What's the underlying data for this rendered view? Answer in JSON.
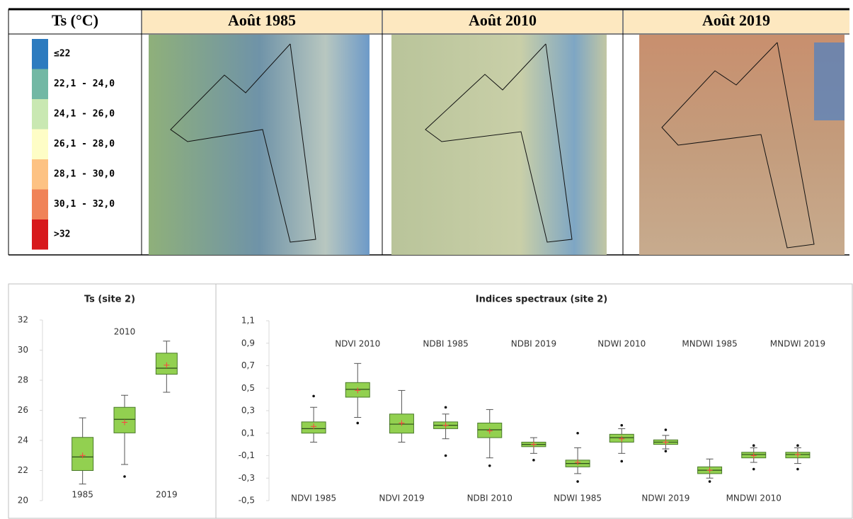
{
  "table": {
    "header": [
      "Ts (°C)",
      "Août 1985",
      "Août 2010",
      "Août 2019"
    ],
    "legend": [
      {
        "label": "≤22",
        "color": "#2c7bbf"
      },
      {
        "label": "22,1 - 24,0",
        "color": "#72b8a4"
      },
      {
        "label": "24,1 - 26,0",
        "color": "#c9e8b2"
      },
      {
        "label": "26,1 - 28,0",
        "color": "#fefdc6"
      },
      {
        "label": "28,1 - 30,0",
        "color": "#fdc283"
      },
      {
        "label": "30,1 - 32,0",
        "color": "#f08358"
      },
      {
        "label": ">32",
        "color": "#d7191c"
      }
    ]
  },
  "chart_data": [
    {
      "type": "box",
      "title": "Ts (site 2)",
      "box_color": "#92d050",
      "mean_color": "#ff4040",
      "categories": [
        "1985",
        "2010",
        "2019"
      ],
      "low": [
        21.1,
        22.4,
        27.2
      ],
      "q1": [
        22.0,
        24.5,
        28.4
      ],
      "median": [
        22.9,
        25.4,
        28.8
      ],
      "q3": [
        24.2,
        26.2,
        29.8
      ],
      "high": [
        25.5,
        27.0,
        30.6
      ],
      "mean": [
        23.0,
        25.2,
        29.0
      ],
      "outliers": [
        [],
        [
          21.6
        ],
        []
      ],
      "ylim": [
        20,
        32
      ],
      "yticks": [
        20,
        22,
        24,
        26,
        28,
        30,
        32
      ]
    },
    {
      "type": "box",
      "title": "Indices spectraux (site 2)",
      "box_color": "#92d050",
      "mean_color": "#ff4040",
      "categories": [
        "NDVI 1985",
        "NDVI 2010",
        "NDVI 2019",
        "NDBI 1985",
        "NDBI 2010",
        "NDBI 2019",
        "NDWI 1985",
        "NDWI 2010",
        "NDWI 2019",
        "MNDWI  1985",
        "MNDWI 2010",
        "MNDWI 2019"
      ],
      "low": [
        0.02,
        0.24,
        0.02,
        0.05,
        -0.12,
        -0.08,
        -0.26,
        -0.08,
        -0.04,
        -0.3,
        -0.16,
        -0.17
      ],
      "q1": [
        0.1,
        0.42,
        0.1,
        0.14,
        0.06,
        -0.02,
        -0.2,
        0.02,
        0.0,
        -0.26,
        -0.12,
        -0.12
      ],
      "median": [
        0.14,
        0.49,
        0.18,
        0.17,
        0.13,
        0.0,
        -0.17,
        0.06,
        0.02,
        -0.23,
        -0.09,
        -0.09
      ],
      "q3": [
        0.2,
        0.55,
        0.27,
        0.2,
        0.19,
        0.02,
        -0.14,
        0.09,
        0.04,
        -0.2,
        -0.07,
        -0.07
      ],
      "high": [
        0.33,
        0.72,
        0.48,
        0.27,
        0.31,
        0.06,
        -0.03,
        0.14,
        0.08,
        -0.13,
        -0.03,
        -0.03
      ],
      "mean": [
        0.16,
        0.48,
        0.19,
        0.17,
        0.12,
        0.0,
        -0.16,
        0.05,
        0.02,
        -0.23,
        -0.1,
        -0.09
      ],
      "outliers": [
        [
          0.43
        ],
        [
          0.19
        ],
        [],
        [
          0.33,
          -0.1
        ],
        [
          -0.19
        ],
        [
          -0.14
        ],
        [
          0.1,
          -0.33
        ],
        [
          0.17,
          -0.15
        ],
        [
          0.13,
          -0.06
        ],
        [
          -0.33
        ],
        [
          -0.01,
          -0.22
        ],
        [
          -0.01,
          -0.22
        ]
      ],
      "ylim": [
        -0.5,
        1.1
      ],
      "yticks": [
        {
          "value": -0.5,
          "label": "-0,5"
        },
        {
          "value": -0.3,
          "label": "-0,3"
        },
        {
          "value": -0.1,
          "label": "-0,1"
        },
        {
          "value": 0.1,
          "label": "0,1"
        },
        {
          "value": 0.3,
          "label": "0,3"
        },
        {
          "value": 0.5,
          "label": "0,5"
        },
        {
          "value": 0.7,
          "label": "0,7"
        },
        {
          "value": 0.9,
          "label": "0,9"
        },
        {
          "value": 1.1,
          "label": "1,1"
        }
      ]
    }
  ]
}
